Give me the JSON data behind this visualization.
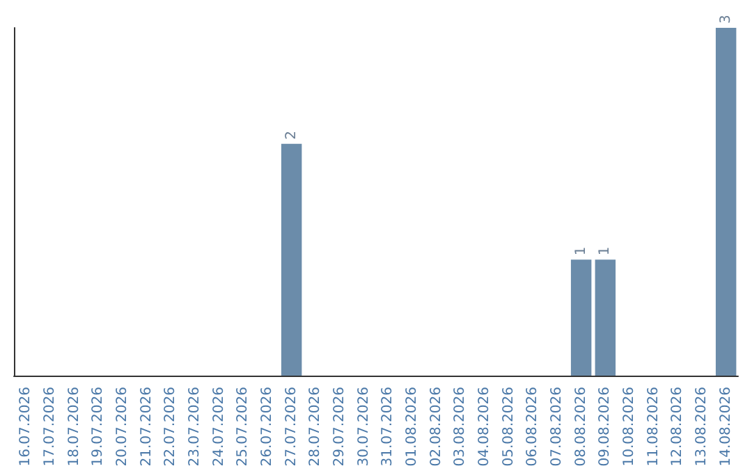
{
  "chart_data": {
    "type": "bar",
    "categories": [
      "16.07.2026",
      "17.07.2026",
      "18.07.2026",
      "19.07.2026",
      "20.07.2026",
      "21.07.2026",
      "22.07.2026",
      "23.07.2026",
      "24.07.2026",
      "25.07.2026",
      "26.07.2026",
      "27.07.2026",
      "28.07.2026",
      "29.07.2026",
      "30.07.2026",
      "31.07.2026",
      "01.08.2026",
      "02.08.2026",
      "03.08.2026",
      "04.08.2026",
      "05.08.2026",
      "06.08.2026",
      "07.08.2026",
      "08.08.2026",
      "09.08.2026",
      "10.08.2026",
      "11.08.2026",
      "12.08.2026",
      "13.08.2026",
      "14.08.2026"
    ],
    "values": [
      0,
      0,
      0,
      0,
      0,
      0,
      0,
      0,
      0,
      0,
      0,
      2,
      0,
      0,
      0,
      0,
      0,
      0,
      0,
      0,
      0,
      0,
      0,
      1,
      1,
      0,
      0,
      0,
      0,
      3
    ],
    "value_labels": [
      null,
      null,
      null,
      null,
      null,
      null,
      null,
      null,
      null,
      null,
      null,
      "2",
      null,
      null,
      null,
      null,
      null,
      null,
      null,
      null,
      null,
      null,
      null,
      "1",
      "1",
      null,
      null,
      null,
      null,
      "3"
    ],
    "color": "#6b8caa"
  }
}
